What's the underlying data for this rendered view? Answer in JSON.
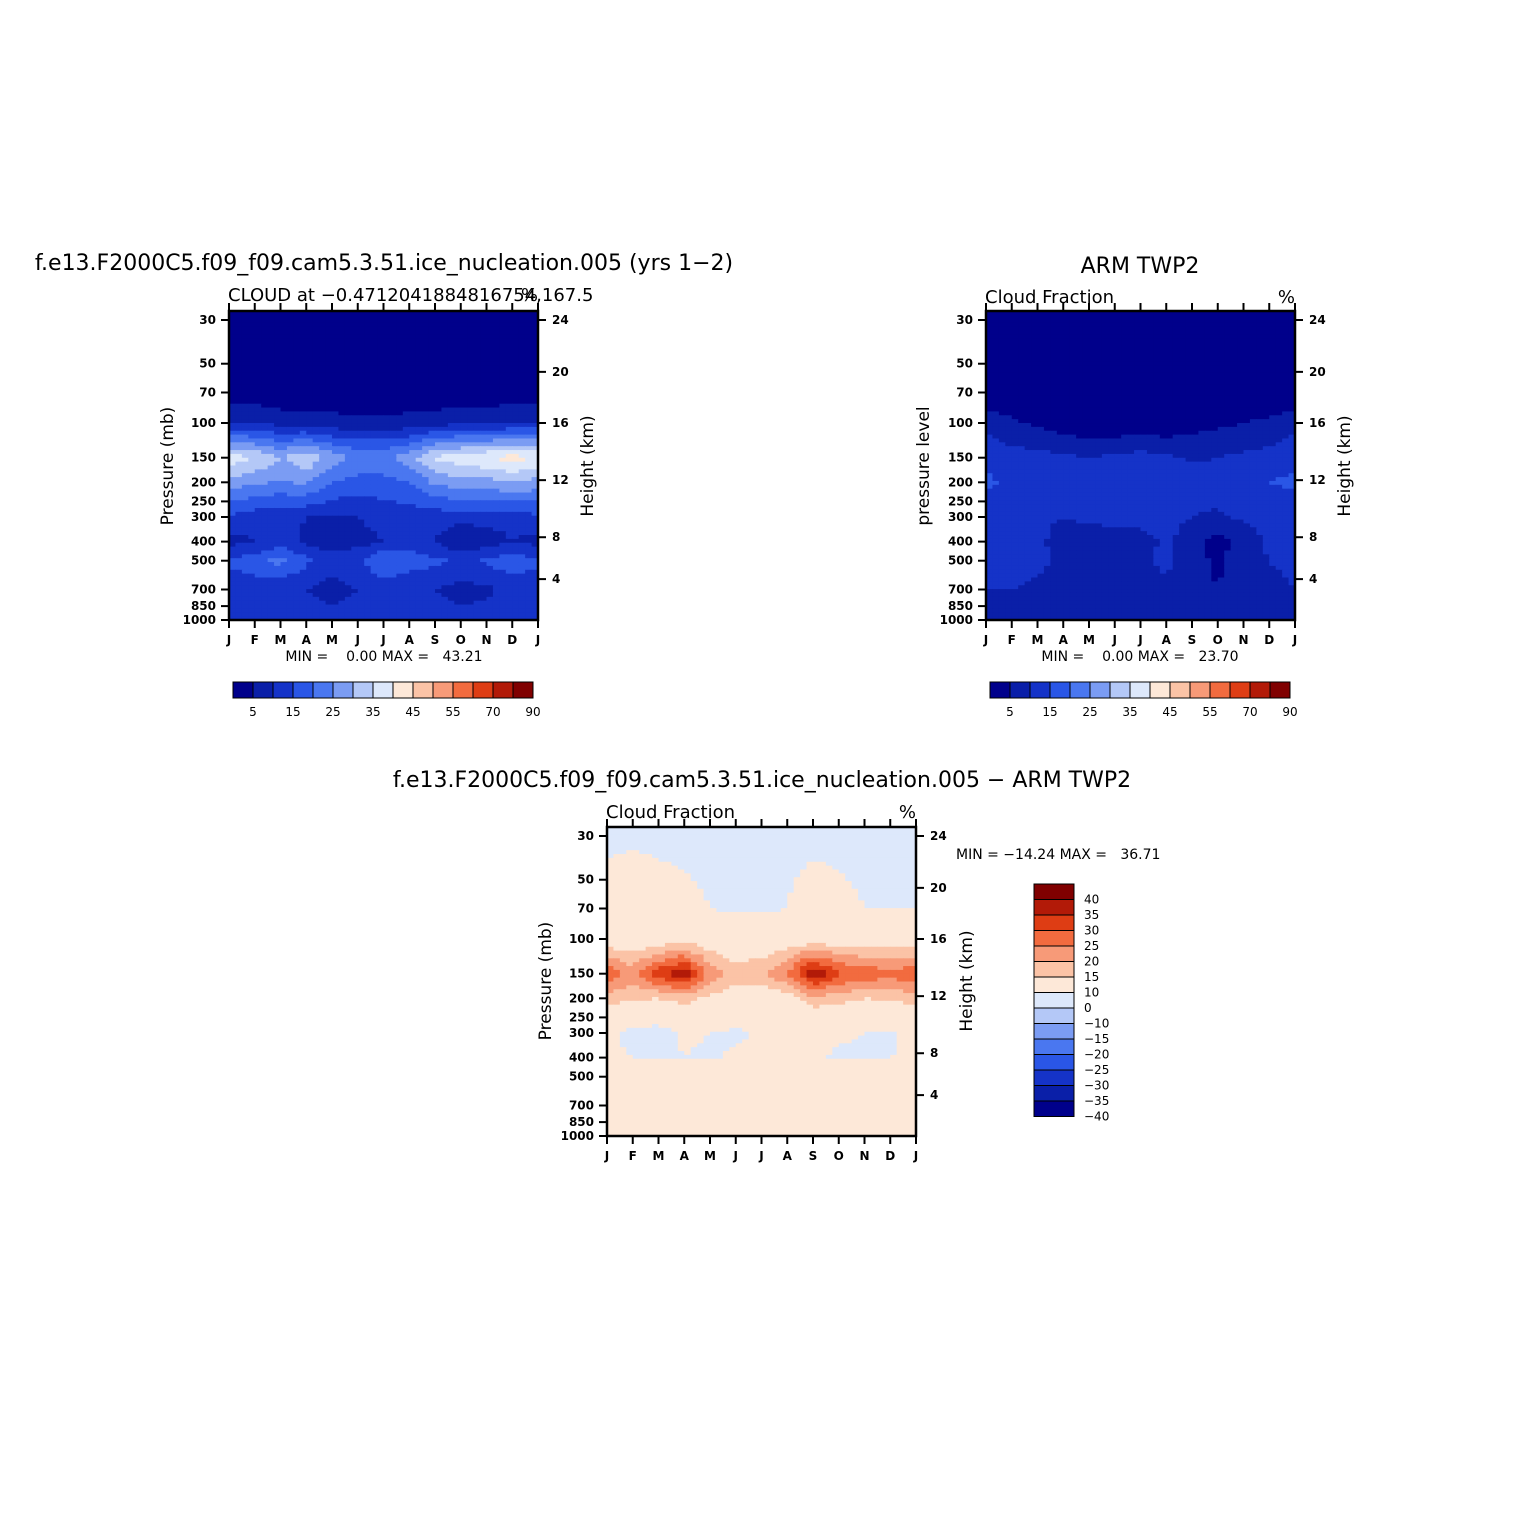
{
  "chart_data": [
    {
      "type": "heatmap",
      "title": "f.e13.F2000C5.f09_f09.cam5.3.51.ice_nucleation.005 (yrs 1−2)",
      "subtitle_left": "CLOUD at −0.4712041884816754,167.5",
      "subtitle_right": "%",
      "ylabel": "Pressure (mb)",
      "ylabel_right": "Height (km)",
      "stats": "MIN =    0.00 MAX =   43.21",
      "x_ticks": [
        "J",
        "F",
        "M",
        "A",
        "M",
        "J",
        "J",
        "A",
        "S",
        "O",
        "N",
        "D",
        "J"
      ],
      "y_ticks": [
        "30",
        "50",
        "70",
        "100",
        "150",
        "200",
        "250",
        "300",
        "400",
        "500",
        "700",
        "850",
        "1000"
      ],
      "y_right_ticks": [
        "24",
        "20",
        "16",
        "12",
        "8",
        "4"
      ],
      "colorbar_labels": [
        "5",
        "15",
        "25",
        "35",
        "45",
        "55",
        "70",
        "90"
      ],
      "colorbar_colors": [
        "#00008b",
        "#0a1fa8",
        "#1533c8",
        "#2a56e6",
        "#4a77f0",
        "#7b9cf3",
        "#b4c8f7",
        "#dde8fb",
        "#fde8d8",
        "#fbc3a6",
        "#f79a78",
        "#f26b3f",
        "#de3d14",
        "#b21a08",
        "#800000"
      ],
      "x": [
        0,
        1,
        2,
        3,
        4,
        5,
        6,
        7,
        8,
        9,
        10,
        11,
        12
      ],
      "z_by_level": {
        "30": [
          0,
          0,
          0,
          0,
          0,
          0,
          0,
          0,
          0,
          0,
          0,
          0,
          0
        ],
        "70": [
          2,
          2,
          1,
          1,
          1,
          1,
          1,
          1,
          1,
          1,
          1,
          2,
          2
        ],
        "100": [
          10,
          10,
          8,
          8,
          7,
          6,
          6,
          7,
          8,
          9,
          9,
          10,
          10
        ],
        "150": [
          38,
          35,
          30,
          34,
          28,
          24,
          24,
          28,
          36,
          38,
          40,
          42,
          40
        ],
        "200": [
          28,
          26,
          24,
          26,
          20,
          18,
          18,
          20,
          26,
          28,
          28,
          30,
          28
        ],
        "300": [
          14,
          12,
          12,
          10,
          10,
          10,
          12,
          12,
          12,
          12,
          12,
          12,
          14
        ],
        "400": [
          8,
          10,
          12,
          9,
          7,
          8,
          10,
          12,
          10,
          5,
          7,
          10,
          8
        ],
        "500": [
          16,
          18,
          22,
          16,
          12,
          14,
          20,
          18,
          16,
          14,
          16,
          18,
          16
        ],
        "700": [
          12,
          12,
          10,
          10,
          8,
          10,
          12,
          10,
          10,
          8,
          9,
          12,
          12
        ],
        "1000": [
          12,
          12,
          12,
          12,
          12,
          12,
          12,
          12,
          12,
          12,
          12,
          12,
          12
        ]
      }
    },
    {
      "type": "heatmap",
      "title": "ARM TWP2",
      "subtitle_left": "Cloud Fraction",
      "subtitle_right": "%",
      "ylabel": "pressure level",
      "ylabel_right": "Height (km)",
      "stats": "MIN =    0.00 MAX =   23.70",
      "x_ticks": [
        "J",
        "F",
        "M",
        "A",
        "M",
        "J",
        "J",
        "A",
        "S",
        "O",
        "N",
        "D",
        "J"
      ],
      "y_ticks": [
        "30",
        "50",
        "70",
        "100",
        "150",
        "200",
        "250",
        "300",
        "400",
        "500",
        "700",
        "850",
        "1000"
      ],
      "y_right_ticks": [
        "24",
        "20",
        "16",
        "12",
        "8",
        "4"
      ],
      "colorbar_labels": [
        "5",
        "15",
        "25",
        "35",
        "45",
        "55",
        "70",
        "90"
      ],
      "colorbar_colors": [
        "#00008b",
        "#0a1fa8",
        "#1533c8",
        "#2a56e6",
        "#4a77f0",
        "#7b9cf3",
        "#b4c8f7",
        "#dde8fb",
        "#fde8d8",
        "#fbc3a6",
        "#f79a78",
        "#f26b3f",
        "#de3d14",
        "#b21a08",
        "#800000"
      ],
      "x": [
        0,
        1,
        2,
        3,
        4,
        5,
        6,
        7,
        8,
        9,
        10,
        11,
        12
      ],
      "z_by_level": {
        "30": [
          0,
          0,
          0,
          0,
          0,
          0,
          0,
          0,
          0,
          0,
          0,
          0,
          0
        ],
        "70": [
          1,
          1,
          1,
          1,
          1,
          1,
          1,
          1,
          1,
          1,
          1,
          1,
          1
        ],
        "100": [
          8,
          6,
          4,
          2,
          1,
          1,
          1,
          1,
          3,
          4,
          5,
          6,
          8
        ],
        "150": [
          14,
          12,
          12,
          11,
          10,
          11,
          12,
          11,
          9,
          10,
          11,
          12,
          14
        ],
        "200": [
          16,
          14,
          15,
          15,
          12,
          15,
          14,
          15,
          13,
          13,
          14,
          15,
          16
        ],
        "300": [
          12,
          11,
          11,
          10,
          11,
          12,
          12,
          12,
          10,
          9,
          11,
          12,
          12
        ],
        "400": [
          12,
          11,
          11,
          8,
          7,
          7,
          8,
          11,
          7,
          3,
          7,
          11,
          12
        ],
        "500": [
          11,
          12,
          11,
          9,
          8,
          8,
          9,
          11,
          7,
          4,
          8,
          10,
          11
        ],
        "700": [
          10,
          10,
          9,
          8,
          7,
          7,
          8,
          9,
          7,
          5,
          8,
          9,
          10
        ],
        "1000": [
          9,
          9,
          9,
          9,
          9,
          9,
          9,
          9,
          9,
          9,
          9,
          9,
          9
        ]
      }
    },
    {
      "type": "heatmap",
      "title": "f.e13.F2000C5.f09_f09.cam5.3.51.ice_nucleation.005 − ARM TWP2",
      "subtitle_left": "Cloud Fraction",
      "subtitle_right": "%",
      "ylabel": "Pressure (mb)",
      "ylabel_right": "Height (km)",
      "stats": "MIN = −14.24 MAX =   36.71",
      "x_ticks": [
        "J",
        "F",
        "M",
        "A",
        "M",
        "J",
        "J",
        "A",
        "S",
        "O",
        "N",
        "D",
        "J"
      ],
      "y_ticks": [
        "30",
        "50",
        "70",
        "100",
        "150",
        "200",
        "250",
        "300",
        "400",
        "500",
        "700",
        "850",
        "1000"
      ],
      "y_right_ticks": [
        "24",
        "20",
        "16",
        "12",
        "8",
        "4"
      ],
      "colorbar_labels": [
        "40",
        "35",
        "30",
        "25",
        "20",
        "15",
        "10",
        "0",
        "−10",
        "−15",
        "−20",
        "−25",
        "−30",
        "−35",
        "−40"
      ],
      "colorbar_colors": [
        "#800000",
        "#b21a08",
        "#de3d14",
        "#f26b3f",
        "#f79a78",
        "#fbc3a6",
        "#fde8d8",
        "#dde8fb",
        "#b4c8f7",
        "#7b9cf3",
        "#4a77f0",
        "#2a56e6",
        "#1533c8",
        "#0a1fa8",
        "#00008b"
      ],
      "x": [
        0,
        1,
        2,
        3,
        4,
        5,
        6,
        7,
        8,
        9,
        10,
        11,
        12
      ],
      "z_by_level": {
        "30": [
          -1,
          -1,
          -1,
          -1,
          -1,
          -1,
          -1,
          -1,
          -1,
          -1,
          -1,
          -1,
          -1
        ],
        "70": [
          2,
          4,
          2,
          1,
          0,
          -1,
          -1,
          0,
          2,
          1,
          0,
          0,
          0
        ],
        "100": [
          5,
          5,
          6,
          7,
          6,
          5,
          5,
          6,
          6,
          6,
          5,
          6,
          5
        ],
        "150": [
          24,
          18,
          28,
          34,
          18,
          12,
          14,
          20,
          35,
          26,
          24,
          22,
          24
        ],
        "200": [
          12,
          11,
          10,
          12,
          9,
          7,
          6,
          7,
          13,
          12,
          10,
          11,
          12
        ],
        "300": [
          2,
          -2,
          -3,
          1,
          0,
          -1,
          1,
          0,
          2,
          1,
          0,
          -1,
          2
        ],
        "400": [
          1,
          0,
          -1,
          0,
          -1,
          1,
          0,
          2,
          1,
          -1,
          -1,
          0,
          1
        ],
        "500": [
          5,
          6,
          9,
          6,
          5,
          5,
          8,
          7,
          9,
          8,
          7,
          8,
          5
        ],
        "700": [
          2,
          1,
          4,
          2,
          2,
          3,
          4,
          2,
          3,
          3,
          2,
          2,
          2
        ],
        "1000": [
          3,
          3,
          3,
          3,
          3,
          3,
          3,
          3,
          3,
          3,
          3,
          3,
          3
        ]
      }
    }
  ]
}
